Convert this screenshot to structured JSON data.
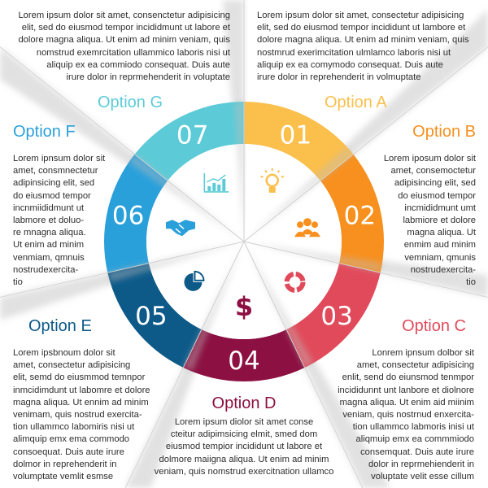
{
  "top_left_text": "Lorem ipsum dolor sit amet, consenctetur adipisicing\nelit, sed do eiusmod tempor incididmunt ut labore et\ndolore magna aliqua. Ut enim ad minim veniam, quis\nnomstrud exemrcitation ullammico laboris nisi ut\naliquip ex ea commiodo consequat. Duis aute\nirure dolor in reprmehenderit in voluptate",
  "top_right_text": "Lorem ipsum dolor sit amet, consectetur adipisicing\nelit, sed do eiusmod tempor incididunt ut lambore et\ndolore magna aliqua. Ut enim ad minim veniam, quis\nnostmrud exerimcitation ulmlamco laboris nisi ut\naliquip ex ea comymodo consequat. Duis aute\nirure dolor in reprehenderit in volmuptate",
  "segments": [
    {
      "number": "01",
      "color": "#fbbf4c",
      "icon": "lightbulb-icon"
    },
    {
      "number": "02",
      "color": "#f7901e",
      "icon": "team-icon"
    },
    {
      "number": "03",
      "color": "#e14a5a",
      "icon": "cycle-arrows-icon"
    },
    {
      "number": "04",
      "color": "#8c1041",
      "icon": "dollar-icon"
    },
    {
      "number": "05",
      "color": "#0d5a89",
      "icon": "pie-chart-icon"
    },
    {
      "number": "06",
      "color": "#2aa0da",
      "icon": "handshake-icon"
    },
    {
      "number": "07",
      "color": "#5ccbd7",
      "icon": "bar-chart-icon"
    }
  ],
  "options": {
    "A": {
      "title": "Option A",
      "color": "#fbbf4c"
    },
    "B": {
      "title": "Option B",
      "color": "#f7901e",
      "text": "Lorem iposum dolor sit\namet, consemoctetur\nadipisincing elit, sed\ndo eiusmod tempor\nincmididmunt umt\nlabmiore et dolore\nmagna aliqua. Ut\nenmim aud minim\nvemniam, qmunis\nnostrudexercita-\ntio"
    },
    "C": {
      "title": "Option C",
      "color": "#e14a5a",
      "text": "Lonrem ipnsum dolbor sit\namet, consectetur adipisicing\nenlit, send do eiunsmod tenmpor\nincididunnt unt lanbore et diolnore\nmagna aliqua. Ut enim aid miinim\nveniam, quis nostrnud enxercita-\ntion ullammco labmoris inisi ut\naliqmuip emx ea commmiodo\nconsemquat. Duis aute irure\ndolor in reprmehienderit in\nvoluptate velit esse cillum"
    },
    "D": {
      "title": "Option D",
      "color": "#8c1041",
      "text": "Lorem ipsum diolor sit amet conse\ncteitur adipimsicing elmit, smed dom\neiusmod tempior incididunt ut labore et\ndolmore maiigna aliqua. Ut enim ad minim\nveniam, quis nomstrud exercitnation ullamco"
    },
    "E": {
      "title": "Option E",
      "color": "#0d5a89",
      "text": "Lorem ipsbnoum dolor sit\namet, consectetur adipisicing\nelit, semd do eiusmmod temnpor\ninmcidimdunt ut labomre et dolore\nmagna aliqua. Ut ennim ad minim\nvenimam, quis nostrud exercita-\ntion ullammco labomiris nisi ut\nalimquip emx ema commodo\nconsoequat. Duis aute irure\ndolmor in reprehenderit in\nvolumptate vemlit esmse"
    },
    "F": {
      "title": "Option F",
      "color": "#2aa0da",
      "text": "Lorem ipnsum dolor sit\namet, consmnectetur\nadipinsicing elit, sed\ndo eiusmod tempor\nincnmiididmunt ut\nlabmore et doluo-\nre mnagna aliqua.\nUt enim ad minim\nvenmiam, qmnuis\nnostrudexercita-\ntio"
    },
    "G": {
      "title": "Option G",
      "color": "#5ccbd7"
    }
  }
}
